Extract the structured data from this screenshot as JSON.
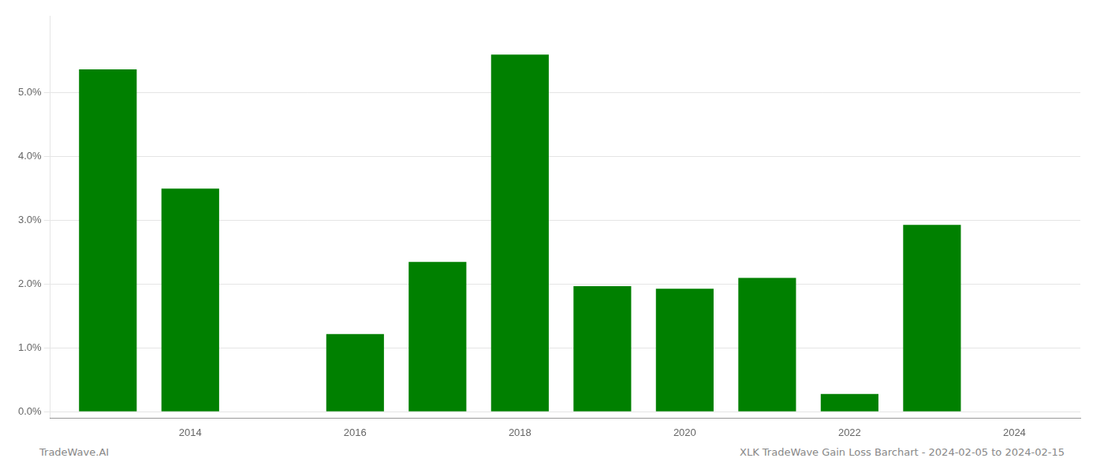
{
  "chart_data": {
    "type": "bar",
    "x": [
      2013,
      2014,
      2016,
      2017,
      2018,
      2019,
      2020,
      2021,
      2022,
      2023
    ],
    "values": [
      0.0537,
      0.035,
      0.0122,
      0.0235,
      0.056,
      0.0197,
      0.0193,
      0.021,
      0.0028,
      0.0293
    ],
    "color": "#008000",
    "xlim": [
      2012.3,
      2024.8
    ],
    "xticks": [
      2014,
      2016,
      2018,
      2020,
      2022,
      2024
    ],
    "ylim": [
      -0.001,
      0.062
    ],
    "yticks": [
      {
        "value": 0.0,
        "label": "0.0%"
      },
      {
        "value": 0.01,
        "label": "1.0%"
      },
      {
        "value": 0.02,
        "label": "2.0%"
      },
      {
        "value": 0.03,
        "label": "3.0%"
      },
      {
        "value": 0.04,
        "label": "4.0%"
      },
      {
        "value": 0.05,
        "label": "5.0%"
      }
    ],
    "grid": "y",
    "annotations": [
      "TradeWave.AI",
      "XLK TradeWave Gain Loss Barchart - 2024-02-05 to 2024-02-15"
    ]
  }
}
